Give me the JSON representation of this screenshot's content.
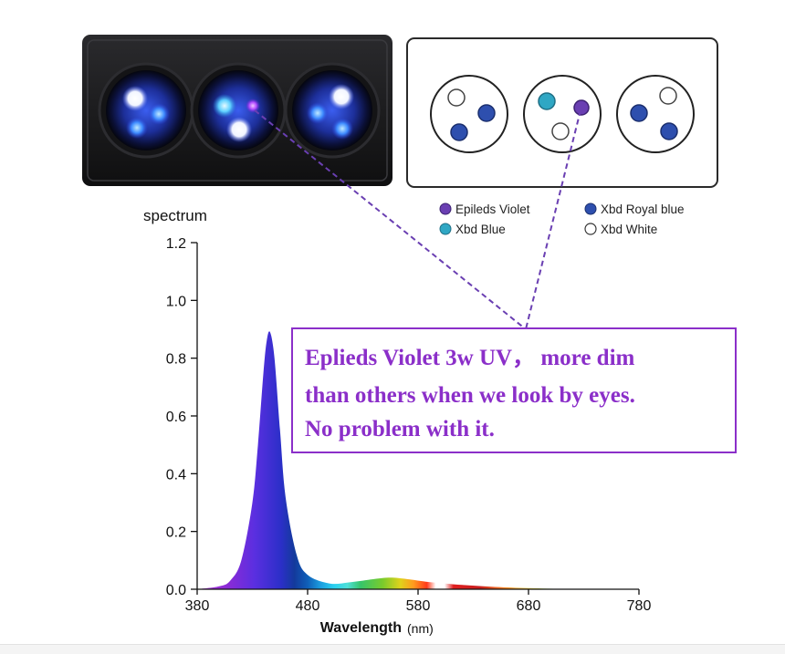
{
  "colors": {
    "violet_led": "#6a3fb2",
    "xbd_blue_led": "#2fa7c4",
    "royal_blue_led": "#2e4fae",
    "white_led": "#ffffff",
    "callout_purple": "#8b2fc9",
    "fixture_body": "#1b1b1d"
  },
  "fixture": {
    "pods": [
      {
        "leds": [
          "white",
          "royal-blue",
          "royal-blue"
        ]
      },
      {
        "leds": [
          "blue",
          "violet",
          "white"
        ]
      },
      {
        "leds": [
          "white",
          "royal-blue",
          "royal-blue"
        ]
      }
    ]
  },
  "schematic": {
    "pods": [
      {
        "leds": [
          "white",
          "royal-blue",
          "royal-blue"
        ]
      },
      {
        "leds": [
          "blue",
          "violet",
          "white"
        ]
      },
      {
        "leds": [
          "white",
          "royal-blue",
          "royal-blue"
        ]
      }
    ]
  },
  "legend": {
    "items": [
      {
        "label": "Epileds Violet",
        "color": "#6a3fb2"
      },
      {
        "label": "Xbd Royal blue",
        "color": "#2e4fae"
      },
      {
        "label": "Xbd Blue",
        "color": "#2fa7c4"
      },
      {
        "label": "Xbd White",
        "color": "#ffffff"
      }
    ]
  },
  "callout": {
    "lines": [
      "Eplieds Violet 3w UV， more dim",
      "than others when we look by eyes.",
      "No problem with it."
    ]
  },
  "chart_data": {
    "type": "area",
    "title": "spectrum",
    "xlabel": "Wavelength",
    "xlabel_unit": "(nm)",
    "ylabel": "",
    "xlim": [
      380,
      780
    ],
    "ylim": [
      0,
      1.2
    ],
    "x_ticks": [
      380,
      480,
      580,
      680,
      780
    ],
    "y_ticks": [
      "0.0",
      "0.2",
      "0.4",
      "0.6",
      "0.8",
      "1.0",
      "1.2"
    ],
    "grid": false,
    "series": [
      {
        "x": [
          380,
          400,
          410,
          420,
          430,
          435,
          440,
          443,
          446,
          450,
          455,
          460,
          470,
          480,
          500,
          520,
          540,
          555,
          570,
          590,
          620,
          650,
          680,
          720,
          780
        ],
        "y": [
          0.0,
          0.01,
          0.03,
          0.1,
          0.3,
          0.5,
          0.75,
          0.86,
          0.89,
          0.8,
          0.55,
          0.32,
          0.12,
          0.05,
          0.02,
          0.025,
          0.035,
          0.04,
          0.035,
          0.025,
          0.015,
          0.008,
          0.004,
          0.001,
          0.0
        ]
      }
    ]
  }
}
